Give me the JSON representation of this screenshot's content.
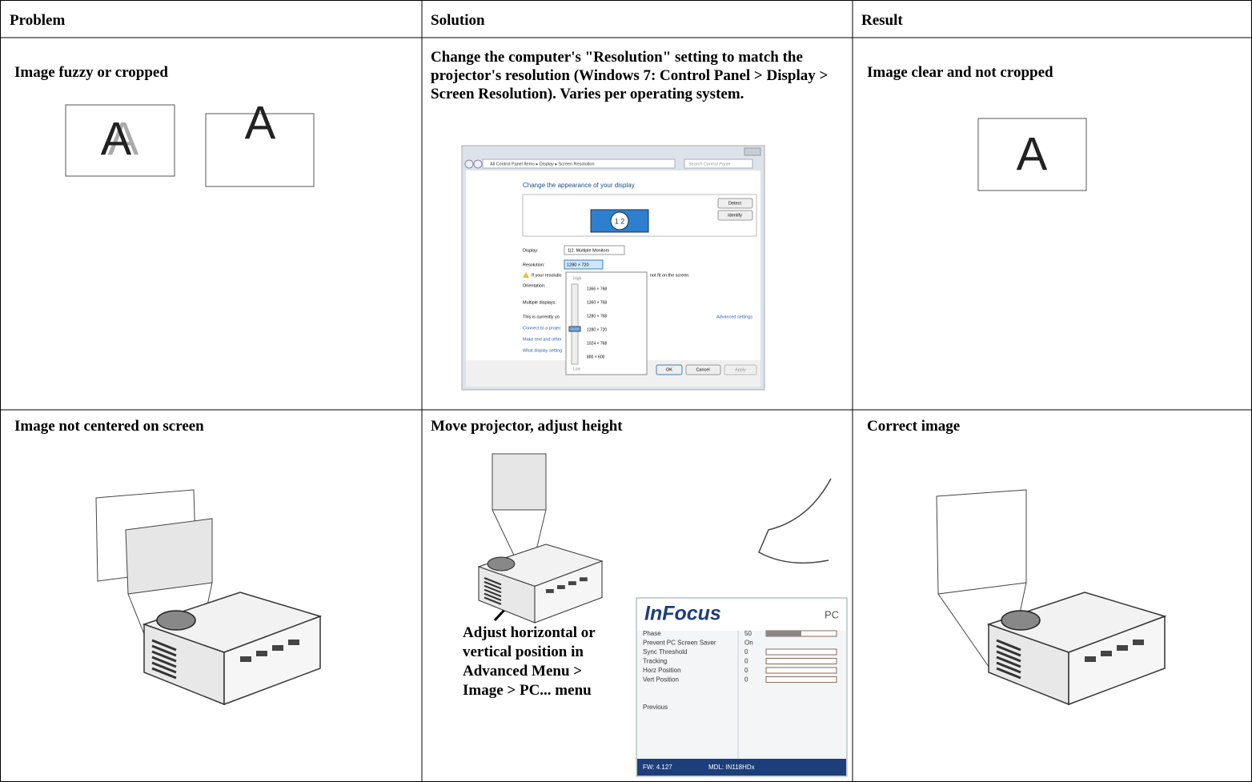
{
  "table": {
    "header": [
      "Problem",
      "Solution",
      "Result"
    ],
    "rows": [
      [
        "Image fuzzy or cropped",
        "Change the computer's \"Resolution\" setting to match the projector's resolution (Windows 7: Control Panel > Display > Screen Resolution). Varies per operating system.",
        "Image clear and not cropped"
      ],
      [
        "Image not centered on screen",
        "Move projector, adjust height",
        "Correct image"
      ]
    ]
  },
  "figures": {
    "fuzzy_letter": "A",
    "cropped_letter": "A",
    "clear_letter": "A",
    "adjust_note": "Adjust horizontal or vertical position in Advanced Menu > Image > PC... menu",
    "screen_resolution_window": {
      "breadcrumb": "All Control Panel Items ▸ Display ▸ Screen Resolution",
      "search": "Search Control Panel",
      "heading": "Change the appearance of your display",
      "monitor_label": "1 2",
      "detect": "Detect",
      "identify": "Identify",
      "display_label": "Display:",
      "display_value": "1|2. Multiple Monitors",
      "resolution_label": "Resolution:",
      "resolution_value": "1280 × 720",
      "warning_start": "If your resolutio",
      "warning_end": "not fit on the screen.",
      "orientation_label": "Orientation:",
      "multiple_label": "Multiple displays:",
      "current_text": "This is currently yo",
      "advanced": "Advanced settings",
      "links": [
        "Connect to a projec",
        "Make text and other",
        "What display setting"
      ],
      "high": "High",
      "low": "Low",
      "options": [
        "1366 × 768",
        "1360 × 768",
        "1280 × 768",
        "1280 × 720",
        "1024 × 768",
        "800 × 600"
      ],
      "ok": "OK",
      "cancel": "Cancel",
      "apply": "Apply"
    },
    "osd_menu": {
      "brand": "InFocus",
      "title": "PC",
      "items": [
        {
          "label": "Phase",
          "value": 50
        },
        {
          "label": "Prevent PC Screen Saver",
          "value": "On"
        },
        {
          "label": "Sync Threshold",
          "value": 0
        },
        {
          "label": "Tracking",
          "value": 0
        },
        {
          "label": "Horz Position",
          "value": 0
        },
        {
          "label": "Vert Position",
          "value": 0
        }
      ],
      "previous": "Previous",
      "firmware": "FW: 4.127",
      "model": "MDL: IN118HDx"
    }
  }
}
